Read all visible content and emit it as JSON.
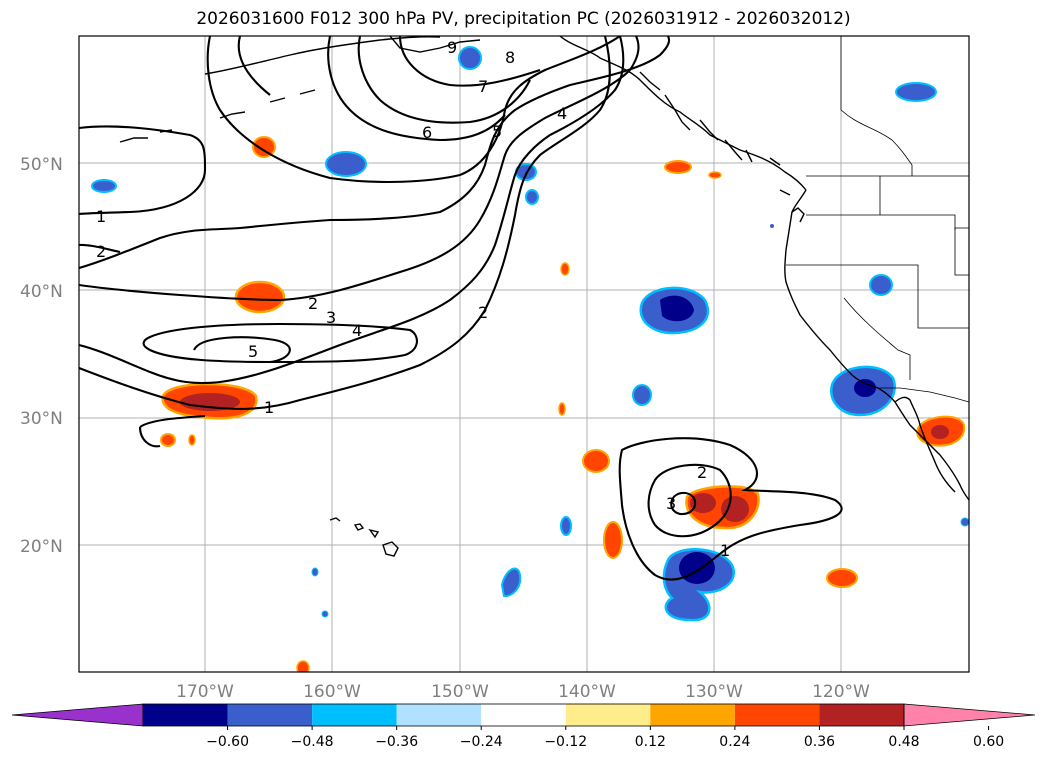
{
  "title": "2026031600 F012 300 hPa PV, precipitation PC (2026031912 - 2026032012)",
  "axes": {
    "lon_labels": [
      "170°W",
      "160°W",
      "150°W",
      "140°W",
      "130°W",
      "120°W"
    ],
    "lat_labels": [
      "50°N",
      "40°N",
      "30°N",
      "20°N"
    ]
  },
  "colorbar": {
    "ticks": [
      "−0.60",
      "−0.48",
      "−0.36",
      "−0.24",
      "−0.12",
      "0.12",
      "0.24",
      "0.36",
      "0.48",
      "0.60"
    ],
    "colors": [
      "#9932cc",
      "#00008b",
      "#3a5fcd",
      "#00bfff",
      "#b0e2ff",
      "#ffffff",
      "#ffec8b",
      "#ffa500",
      "#ff4500",
      "#b22222",
      "#ff82ab"
    ]
  },
  "pv_contour_labels": [
    "1",
    "2",
    "3",
    "4",
    "5",
    "6",
    "7",
    "8",
    "9",
    "1",
    "2",
    "2",
    "3",
    "4",
    "5",
    "1",
    "2",
    "3",
    "1"
  ]
}
